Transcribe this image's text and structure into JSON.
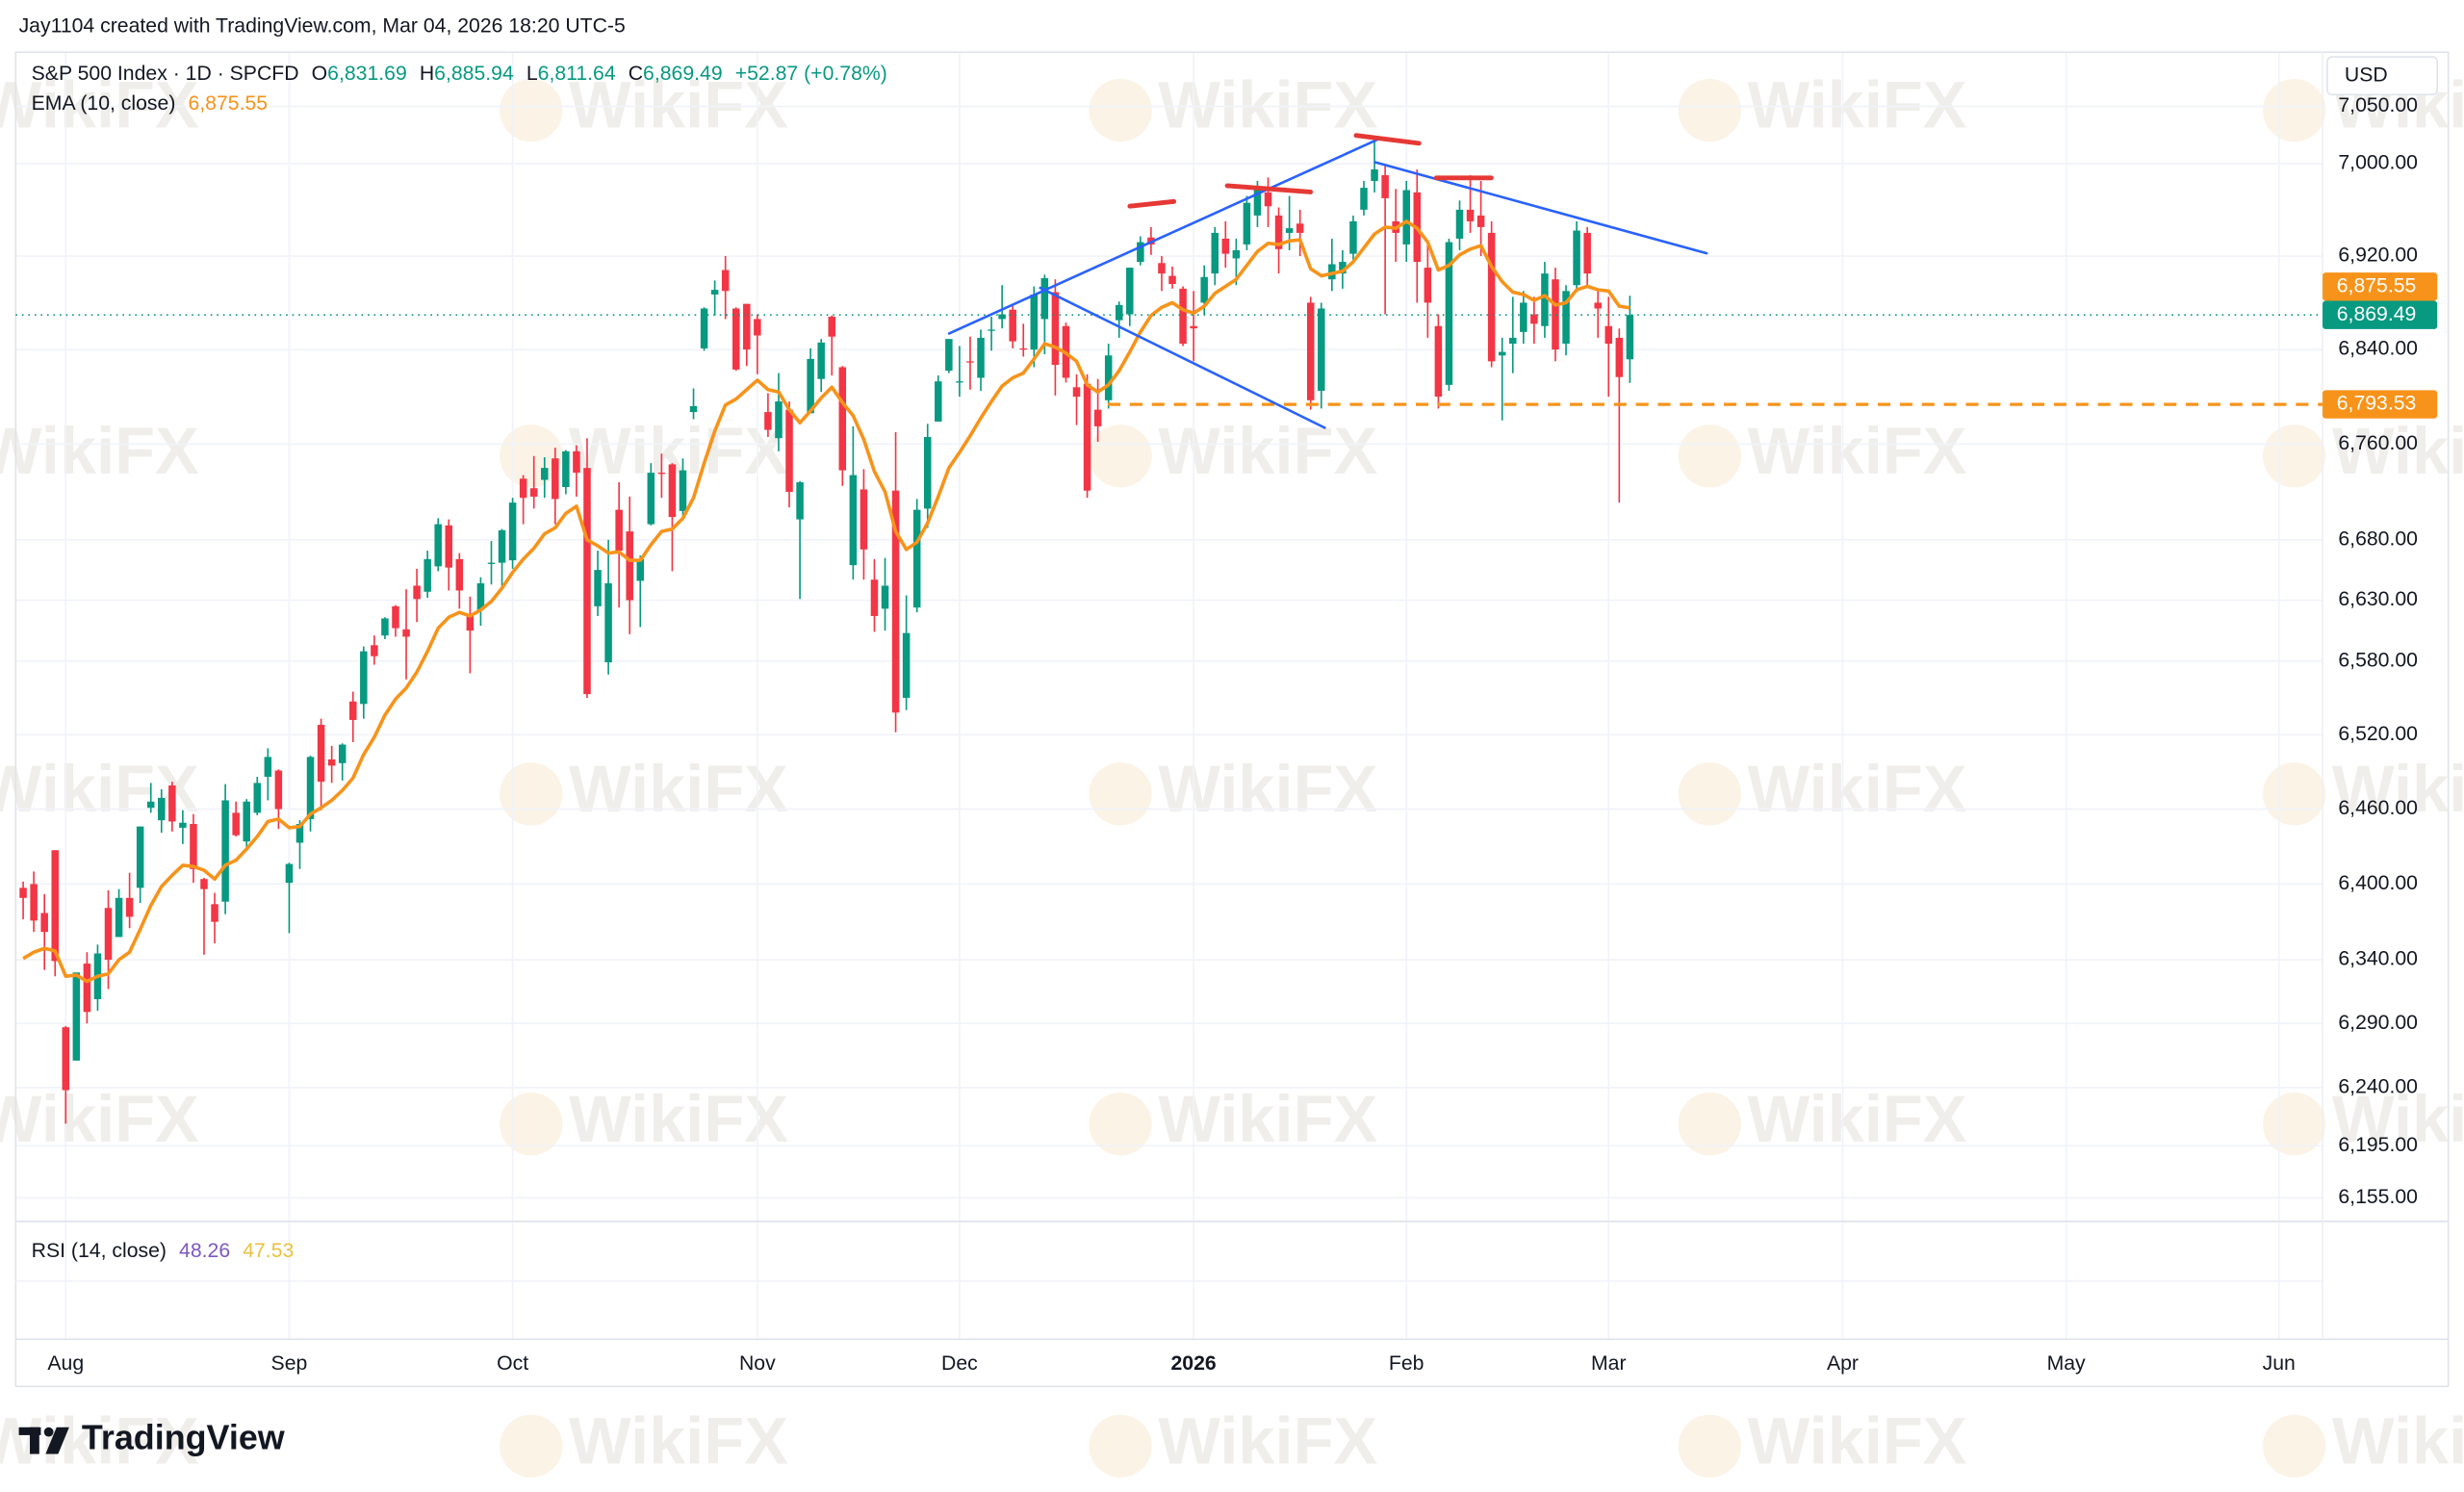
{
  "header": {
    "credit": "Jay1104 created with TradingView.com, Mar 04, 2026 18:20 UTC-5",
    "brand": "TradingView"
  },
  "watermark": "WikiFX",
  "chart_data": {
    "type": "candlestick",
    "symbol": "S&P 500 Index · 1D · SPCFD",
    "ohlc_legend": [
      {
        "key": "O",
        "label": "6,831.69"
      },
      {
        "key": "H",
        "label": "6,885.94"
      },
      {
        "key": "L",
        "label": "6,811.64"
      },
      {
        "key": "C",
        "label": "6,869.49"
      }
    ],
    "change_label": "+52.87 (+0.78%)",
    "currency": "USD",
    "up_color": "#089981",
    "down_color": "#f23645",
    "candles": [
      [
        6397,
        6402,
        6372,
        6389
      ],
      [
        6400,
        6410,
        6362,
        6371
      ],
      [
        6377,
        6392,
        6332,
        6362
      ],
      [
        6427,
        6427,
        6327,
        6339
      ],
      [
        6287,
        6288,
        6212,
        6238
      ],
      [
        6261,
        6330,
        6261,
        6330
      ],
      [
        6337,
        6346,
        6290,
        6299
      ],
      [
        6309,
        6352,
        6300,
        6345
      ],
      [
        6381,
        6395,
        6317,
        6340
      ],
      [
        6358,
        6396,
        6358,
        6389
      ],
      [
        6389,
        6409,
        6365,
        6374
      ],
      [
        6397,
        6446,
        6385,
        6446
      ],
      [
        6461,
        6481,
        6457,
        6466
      ],
      [
        6451,
        6476,
        6441,
        6469
      ],
      [
        6479,
        6482,
        6442,
        6450
      ],
      [
        6445,
        6459,
        6432,
        6449
      ],
      [
        6448,
        6456,
        6401,
        6412
      ],
      [
        6404,
        6405,
        6344,
        6396
      ],
      [
        6384,
        6393,
        6353,
        6370
      ],
      [
        6386,
        6480,
        6376,
        6467
      ],
      [
        6457,
        6466,
        6438,
        6439
      ],
      [
        6434,
        6468,
        6428,
        6466
      ],
      [
        6457,
        6486,
        6455,
        6481
      ],
      [
        6486,
        6509,
        6467,
        6502
      ],
      [
        6491,
        6492,
        6444,
        6460
      ],
      [
        6401,
        6417,
        6361,
        6416
      ],
      [
        6433,
        6451,
        6412,
        6448
      ],
      [
        6452,
        6503,
        6442,
        6502
      ],
      [
        6528,
        6533,
        6459,
        6482
      ],
      [
        6500,
        6511,
        6481,
        6495
      ],
      [
        6497,
        6513,
        6483,
        6512
      ],
      [
        6547,
        6555,
        6514,
        6532
      ],
      [
        6545,
        6592,
        6533,
        6588
      ],
      [
        6593,
        6601,
        6577,
        6584
      ],
      [
        6601,
        6616,
        6598,
        6615
      ],
      [
        6625,
        6626,
        6600,
        6607
      ],
      [
        6606,
        6639,
        6565,
        6600
      ],
      [
        6642,
        6656,
        6612,
        6631
      ],
      [
        6637,
        6671,
        6632,
        6664
      ],
      [
        6658,
        6698,
        6654,
        6693
      ],
      [
        6692,
        6697,
        6638,
        6657
      ],
      [
        6664,
        6669,
        6623,
        6638
      ],
      [
        6618,
        6633,
        6570,
        6605
      ],
      [
        6622,
        6649,
        6609,
        6644
      ],
      [
        6661,
        6679,
        6643,
        6661
      ],
      [
        6661,
        6689,
        6638,
        6688
      ],
      [
        6663,
        6715,
        6656,
        6711
      ],
      [
        6731,
        6734,
        6693,
        6715
      ],
      [
        6723,
        6750,
        6706,
        6716
      ],
      [
        6730,
        6749,
        6715,
        6740
      ],
      [
        6748,
        6757,
        6693,
        6714
      ],
      [
        6724,
        6755,
        6718,
        6754
      ],
      [
        6754,
        6759,
        6716,
        6736
      ],
      [
        6740,
        6765,
        6550,
        6553
      ],
      [
        6625,
        6671,
        6617,
        6655
      ],
      [
        6579,
        6680,
        6569,
        6644
      ],
      [
        6705,
        6728,
        6624,
        6671
      ],
      [
        6687,
        6716,
        6602,
        6630
      ],
      [
        6646,
        6667,
        6608,
        6664
      ],
      [
        6693,
        6744,
        6692,
        6736
      ],
      [
        6736,
        6752,
        6715,
        6735
      ],
      [
        6743,
        6744,
        6654,
        6699
      ],
      [
        6704,
        6748,
        6696,
        6738
      ],
      [
        6787,
        6807,
        6781,
        6792
      ],
      [
        6841,
        6876,
        6839,
        6875
      ],
      [
        6887,
        6899,
        6869,
        6891
      ],
      [
        6908,
        6920,
        6866,
        6890
      ],
      [
        6875,
        6876,
        6822,
        6823
      ],
      [
        6879,
        6879,
        6826,
        6840
      ],
      [
        6866,
        6870,
        6819,
        6852
      ],
      [
        6787,
        6803,
        6766,
        6772
      ],
      [
        6765,
        6820,
        6754,
        6796
      ],
      [
        6789,
        6796,
        6707,
        6720
      ],
      [
        6697,
        6729,
        6631,
        6728
      ],
      [
        6786,
        6841,
        6786,
        6832
      ],
      [
        6815,
        6849,
        6804,
        6846
      ],
      [
        6868,
        6869,
        6818,
        6851
      ],
      [
        6825,
        6826,
        6725,
        6738
      ],
      [
        6659,
        6775,
        6647,
        6734
      ],
      [
        6722,
        6739,
        6647,
        6672
      ],
      [
        6647,
        6664,
        6604,
        6617
      ],
      [
        6623,
        6665,
        6605,
        6642
      ],
      [
        6721,
        6770,
        6522,
        6538
      ],
      [
        6550,
        6634,
        6540,
        6603
      ],
      [
        6624,
        6714,
        6620,
        6705
      ],
      [
        6706,
        6777,
        6690,
        6766
      ],
      [
        6779,
        6818,
        6779,
        6813
      ],
      [
        6822,
        6849,
        6820,
        6849
      ],
      [
        6812,
        6843,
        6800,
        6813
      ],
      [
        6830,
        6851,
        6806,
        6829
      ],
      [
        6816,
        6857,
        6805,
        6850
      ],
      [
        6856,
        6868,
        6839,
        6857
      ],
      [
        6866,
        6895,
        6858,
        6870
      ],
      [
        6874,
        6879,
        6841,
        6847
      ],
      [
        6841,
        6862,
        6834,
        6840
      ],
      [
        6840,
        6894,
        6825,
        6887
      ],
      [
        6866,
        6904,
        6836,
        6901
      ],
      [
        6889,
        6900,
        6801,
        6827
      ],
      [
        6860,
        6863,
        6812,
        6816
      ],
      [
        6808,
        6819,
        6776,
        6800
      ],
      [
        6811,
        6819,
        6715,
        6721
      ],
      [
        6789,
        6815,
        6762,
        6775
      ],
      [
        6797,
        6845,
        6790,
        6835
      ],
      [
        6865,
        6881,
        6850,
        6878
      ],
      [
        6870,
        6910,
        6860,
        6910
      ],
      [
        6915,
        6937,
        6912,
        6932
      ],
      [
        6936,
        6945,
        6921,
        6930
      ],
      [
        6914,
        6920,
        6890,
        6905
      ],
      [
        6903,
        6911,
        6892,
        6896
      ],
      [
        6892,
        6894,
        6843,
        6845
      ],
      [
        6860,
        6890,
        6830,
        6858
      ],
      [
        6880,
        6912,
        6870,
        6902
      ],
      [
        6905,
        6945,
        6895,
        6940
      ],
      [
        6935,
        6950,
        6910,
        6922
      ],
      [
        6918,
        6935,
        6895,
        6925
      ],
      [
        6930,
        6972,
        6925,
        6966
      ],
      [
        6955,
        6985,
        6945,
        6977
      ],
      [
        6975,
        6988,
        6945,
        6963
      ],
      [
        6955,
        6962,
        6905,
        6926
      ],
      [
        6940,
        6972,
        6925,
        6944
      ],
      [
        6948,
        6960,
        6920,
        6940
      ],
      [
        6880,
        6885,
        6789,
        6797
      ],
      [
        6805,
        6880,
        6790,
        6875
      ],
      [
        6900,
        6935,
        6890,
        6913
      ],
      [
        6905,
        6925,
        6892,
        6915
      ],
      [
        6922,
        6955,
        6915,
        6950
      ],
      [
        6960,
        6985,
        6955,
        6979
      ],
      [
        6985,
        7020,
        6975,
        6995
      ],
      [
        6990,
        6998,
        6870,
        6970
      ],
      [
        6950,
        6978,
        6915,
        6940
      ],
      [
        6930,
        6985,
        6915,
        6977
      ],
      [
        6975,
        6995,
        6880,
        6915
      ],
      [
        6910,
        6930,
        6850,
        6880
      ],
      [
        6860,
        6870,
        6790,
        6800
      ],
      [
        6810,
        6935,
        6805,
        6932
      ],
      [
        6935,
        6968,
        6925,
        6960
      ],
      [
        6960,
        6990,
        6940,
        6950
      ],
      [
        6955,
        6985,
        6920,
        6945
      ],
      [
        6940,
        6950,
        6825,
        6830
      ],
      [
        6835,
        6850,
        6780,
        6838
      ],
      [
        6845,
        6885,
        6820,
        6850
      ],
      [
        6855,
        6890,
        6845,
        6880
      ],
      [
        6870,
        6885,
        6845,
        6862
      ],
      [
        6860,
        6915,
        6850,
        6905
      ],
      [
        6900,
        6910,
        6830,
        6840
      ],
      [
        6845,
        6895,
        6835,
        6890
      ],
      [
        6895,
        6950,
        6890,
        6942
      ],
      [
        6940,
        6945,
        6895,
        6905
      ],
      [
        6880,
        6890,
        6850,
        6875
      ],
      [
        6860,
        6885,
        6800,
        6845
      ],
      [
        6850,
        6858,
        6711,
        6816.62
      ],
      [
        6831.69,
        6885.94,
        6811.64,
        6869.49
      ]
    ],
    "ema": {
      "name": "EMA (10, close)",
      "value_label": "6,875.55",
      "color": "#f7931a",
      "values": [
        6341,
        6346,
        6349,
        6347,
        6327,
        6328,
        6323,
        6327,
        6329,
        6340,
        6346,
        6364,
        6383,
        6398,
        6407,
        6415,
        6414,
        6411,
        6404,
        6415,
        6419,
        6428,
        6438,
        6450,
        6452,
        6445,
        6446,
        6456,
        6461,
        6467,
        6475,
        6485,
        6504,
        6518,
        6536,
        6549,
        6558,
        6571,
        6588,
        6607,
        6616,
        6620,
        6617,
        6622,
        6629,
        6640,
        6653,
        6664,
        6673,
        6685,
        6690,
        6702,
        6708,
        6680,
        6675,
        6669,
        6670,
        6663,
        6663,
        6676,
        6687,
        6689,
        6698,
        6715,
        6744,
        6771,
        6793,
        6798,
        6806,
        6814,
        6806,
        6804,
        6789,
        6778,
        6788,
        6799,
        6808,
        6795,
        6784,
        6764,
        6737,
        6720,
        6687,
        6672,
        6678,
        6694,
        6716,
        6740,
        6753,
        6767,
        6782,
        6796,
        6809,
        6816,
        6820,
        6832,
        6845,
        6842,
        6837,
        6830,
        6810,
        6804,
        6810,
        6822,
        6838,
        6855,
        6869,
        6876,
        6880,
        6874,
        6871,
        6877,
        6888,
        6894,
        6900,
        6912,
        6924,
        6931,
        6930,
        6933,
        6934,
        6909,
        6903,
        6905,
        6907,
        6915,
        6927,
        6939,
        6945,
        6944,
        6950,
        6944,
        6932,
        6908,
        6912,
        6921,
        6926,
        6929,
        6911,
        6898,
        6889,
        6887,
        6882,
        6886,
        6878,
        6880,
        6891,
        6894,
        6891,
        6890,
        6877,
        6875.55
      ]
    },
    "last_label": "6,869.49",
    "level": {
      "value": 6793.53,
      "label": "6,793.53",
      "color": "#f7931a"
    },
    "log_scale": true,
    "grid": true,
    "xlim": [
      -0.7,
      216.1
    ],
    "xticks": [
      {
        "value": 4,
        "label": "Aug"
      },
      {
        "value": 25,
        "label": "Sep"
      },
      {
        "value": 46,
        "label": "Oct"
      },
      {
        "value": 69,
        "label": "Nov"
      },
      {
        "value": 88,
        "label": "Dec"
      },
      {
        "value": 110,
        "label": "2026"
      },
      {
        "value": 130,
        "label": "Feb"
      },
      {
        "value": 149,
        "label": "Mar"
      },
      {
        "value": 171,
        "label": "Apr"
      },
      {
        "value": 192,
        "label": "May"
      },
      {
        "value": 212,
        "label": "Jun"
      }
    ],
    "ylim": [
      6137,
      7095
    ],
    "yticks": [
      {
        "value": 6155,
        "label": "6,155.00"
      },
      {
        "value": 6195,
        "label": "6,195.00"
      },
      {
        "value": 6240,
        "label": "6,240.00"
      },
      {
        "value": 6290,
        "label": "6,290.00"
      },
      {
        "value": 6340,
        "label": "6,340.00"
      },
      {
        "value": 6400,
        "label": "6,400.00"
      },
      {
        "value": 6460,
        "label": "6,460.00"
      },
      {
        "value": 6520,
        "label": "6,520.00"
      },
      {
        "value": 6580,
        "label": "6,580.00"
      },
      {
        "value": 6630,
        "label": "6,630.00"
      },
      {
        "value": 6680,
        "label": "6,680.00"
      },
      {
        "value": 6760,
        "label": "6,760.00"
      },
      {
        "value": 6840,
        "label": "6,840.00"
      },
      {
        "value": 6920,
        "label": "6,920.00"
      },
      {
        "value": 7000,
        "label": "7,000.00"
      },
      {
        "value": 7050,
        "label": "7,050.00"
      }
    ]
  },
  "rsi": {
    "name": "RSI (14, close)",
    "value": 48.26,
    "color": "#7e57c2",
    "signal": 47.53,
    "signal_color": "#e9c13d"
  }
}
